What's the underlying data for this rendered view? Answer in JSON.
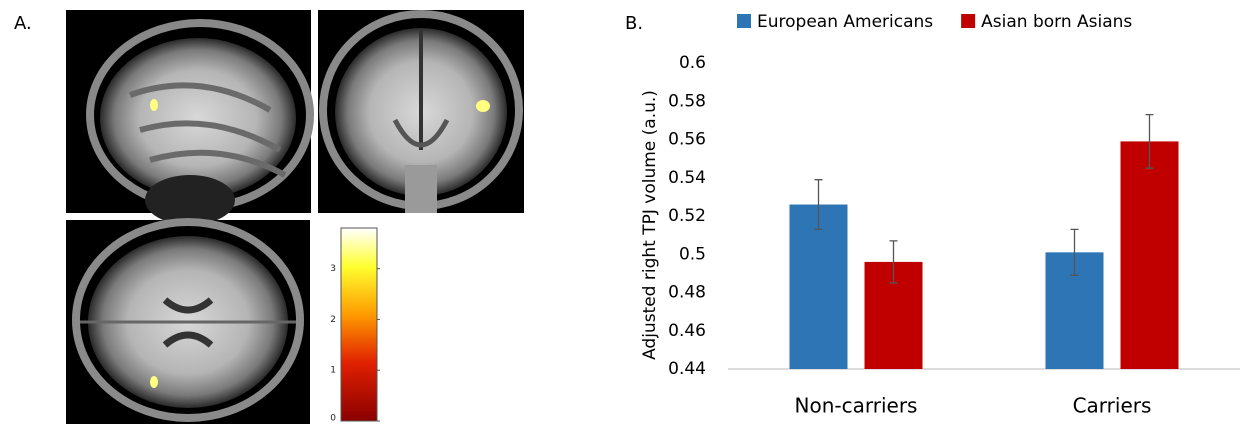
{
  "panel_a": {
    "label": "A.",
    "colorbar": {
      "ylim": [
        0,
        3.8
      ],
      "yticks": [
        0,
        1,
        2,
        3
      ]
    }
  },
  "chart_data": {
    "type": "bar",
    "panel_label": "B.",
    "y_label": "Adjusted right TPJ volume (a.u.)",
    "categories": [
      "Non-carriers",
      "Carriers"
    ],
    "series": [
      {
        "name": "European Americans",
        "color": "#2e75b6",
        "values": [
          0.526,
          0.501
        ],
        "errors": [
          0.013,
          0.012
        ]
      },
      {
        "name": "Asian born Asians",
        "color": "#c00000",
        "values": [
          0.496,
          0.559
        ],
        "errors": [
          0.011,
          0.014
        ]
      }
    ],
    "ylim": [
      0.44,
      0.6
    ],
    "yticks": [
      0.44,
      0.46,
      0.48,
      0.5,
      0.52,
      0.54,
      0.56,
      0.58,
      0.6
    ],
    "grid": false
  }
}
